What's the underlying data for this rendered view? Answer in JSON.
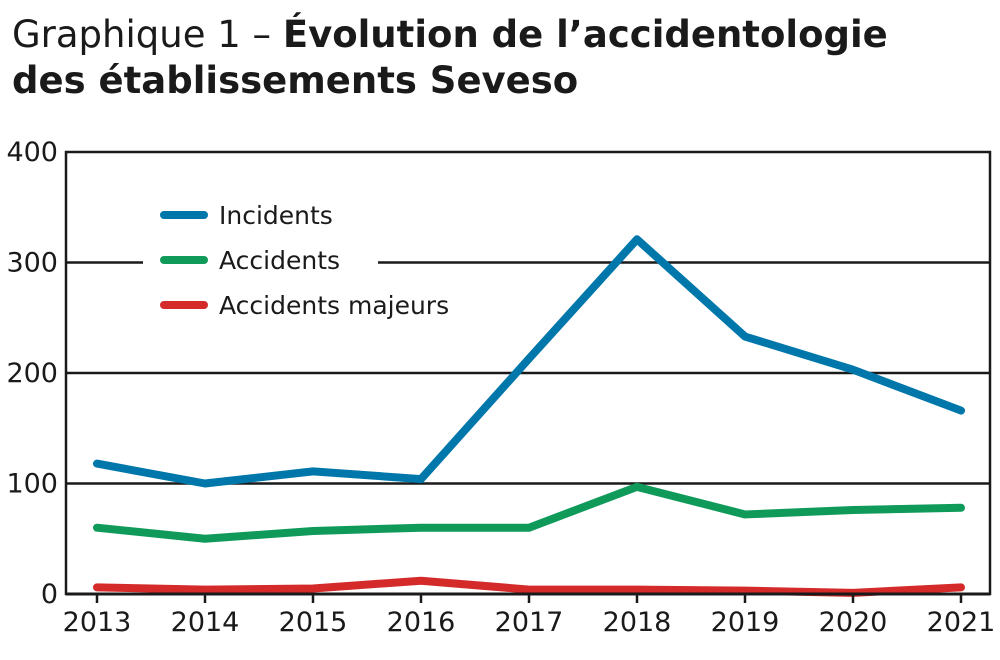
{
  "title": {
    "prefix": "Graphique 1 – ",
    "line1": "Évolution de l’accidentologie",
    "line2": "des établissements Seveso"
  },
  "chart_data": {
    "type": "line",
    "x": [
      "2013",
      "2014",
      "2015",
      "2016",
      "2017",
      "2018",
      "2019",
      "2020",
      "2021"
    ],
    "ylim": [
      0,
      400
    ],
    "yticks": [
      0,
      100,
      200,
      300,
      400
    ],
    "grid": true,
    "legend_position": "top-left",
    "series": [
      {
        "name": "Incidents",
        "color": "#0077aa",
        "values": [
          118,
          100,
          111,
          104,
          213,
          321,
          233,
          203,
          166
        ]
      },
      {
        "name": "Accidents",
        "color": "#0f9a5a",
        "values": [
          60,
          50,
          57,
          60,
          60,
          97,
          72,
          76,
          78
        ]
      },
      {
        "name": "Accidents majeurs",
        "color": "#d42a2a",
        "values": [
          6,
          4,
          5,
          12,
          4,
          4,
          3,
          1,
          6
        ]
      }
    ]
  }
}
